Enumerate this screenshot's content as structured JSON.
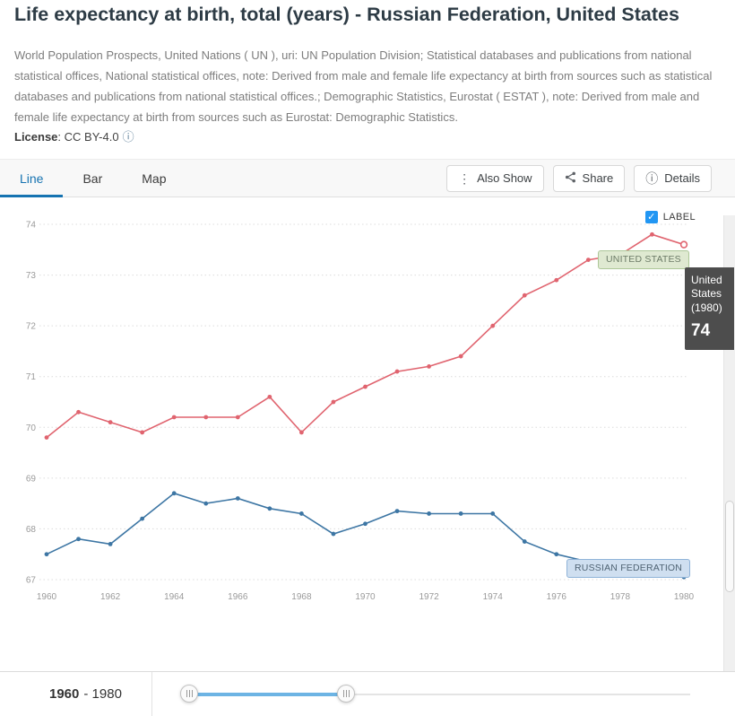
{
  "header": {
    "title": "Life expectancy at birth, total (years) - Russian Federation, United States",
    "source_note": "World Population Prospects, United Nations ( UN ), uri: UN Population Division; Statistical databases and publications from national statistical offices, National statistical offices, note: Derived from male and female life expectancy at birth from sources such as statistical databases and publications from national statistical offices.; Demographic Statistics, Eurostat ( ESTAT ), note: Derived from male and female life expectancy at birth from sources such as Eurostat: Demographic Statistics.",
    "license_label": "License",
    "license_value": ": CC BY-4.0"
  },
  "tabs": [
    {
      "label": "Line"
    },
    {
      "label": "Bar"
    },
    {
      "label": "Map"
    }
  ],
  "toolbar": {
    "also_show_label": "Also Show",
    "share_label": "Share",
    "details_label": "Details"
  },
  "chart": {
    "label_checkbox": "LABEL",
    "badges": {
      "us": "UNITED STATES",
      "ru": "RUSSIAN FEDERATION"
    },
    "tooltip": {
      "series": "United States",
      "year": "(1980)",
      "value": "74"
    }
  },
  "chart_data": {
    "type": "line",
    "title": "Life expectancy at birth, total (years)",
    "x": [
      1960,
      1961,
      1962,
      1963,
      1964,
      1965,
      1966,
      1967,
      1968,
      1969,
      1970,
      1971,
      1972,
      1973,
      1974,
      1975,
      1976,
      1977,
      1978,
      1979,
      1980
    ],
    "xticks": [
      1960,
      1962,
      1964,
      1966,
      1968,
      1970,
      1972,
      1974,
      1976,
      1978,
      1980
    ],
    "ylim": [
      67,
      74
    ],
    "yticks": [
      67,
      68,
      69,
      70,
      71,
      72,
      73,
      74
    ],
    "grid": "dotted-horizontal",
    "series": [
      {
        "name": "United States",
        "color": "#e0646f",
        "end_marker": "open",
        "values": [
          69.8,
          70.3,
          70.1,
          69.9,
          70.2,
          70.2,
          70.2,
          70.6,
          69.9,
          70.5,
          70.8,
          71.1,
          71.2,
          71.4,
          72.0,
          72.6,
          72.9,
          73.3,
          73.4,
          73.8,
          73.6
        ]
      },
      {
        "name": "Russian Federation",
        "color": "#3d76a4",
        "end_marker": "dot",
        "values": [
          67.5,
          67.8,
          67.7,
          68.2,
          68.7,
          68.5,
          68.6,
          68.4,
          68.3,
          67.9,
          68.1,
          68.35,
          68.3,
          68.3,
          68.3,
          67.75,
          67.5,
          67.35,
          67.25,
          67.1,
          67.05
        ]
      }
    ]
  },
  "slider": {
    "start": "1960",
    "rest": "- 1980"
  }
}
